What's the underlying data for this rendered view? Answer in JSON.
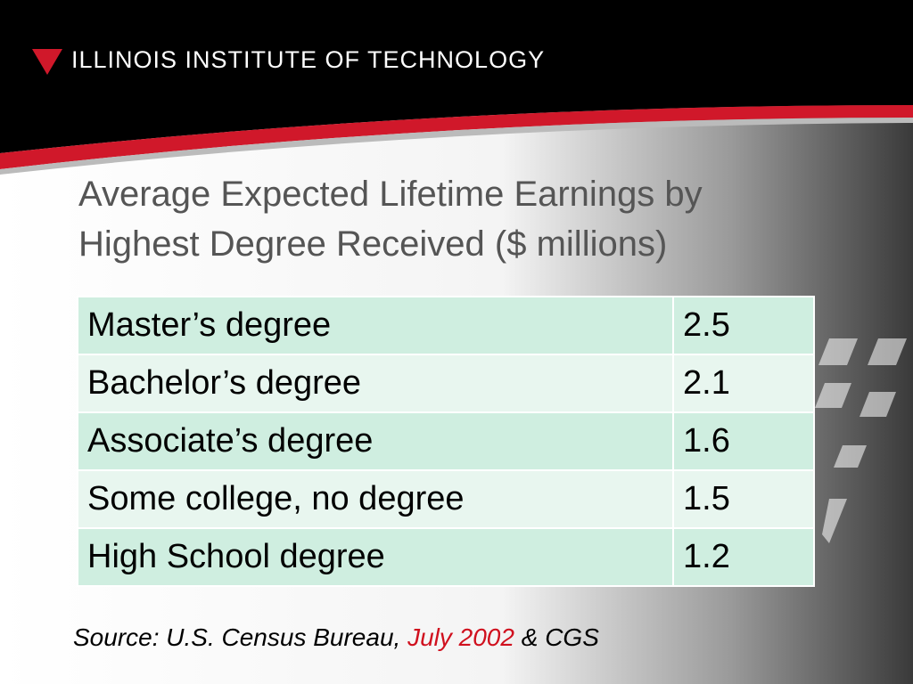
{
  "header": {
    "brand": "ILLINOIS INSTITUTE OF TECHNOLOGY"
  },
  "title": "Average Expected Lifetime Earnings by Highest Degree Received ($ millions)",
  "table": {
    "rows": [
      [
        "Master’s degree",
        2.5
      ],
      [
        "Bachelor’s degree",
        2.1
      ],
      [
        "Associate’s degree",
        1.6
      ],
      [
        "Some college, no degree",
        1.5
      ],
      [
        "High School degree",
        1.2
      ]
    ]
  },
  "source": {
    "text": "Source: U.S. Census Bureau,",
    "date": "July 2002",
    "extra": "& CGS"
  }
}
